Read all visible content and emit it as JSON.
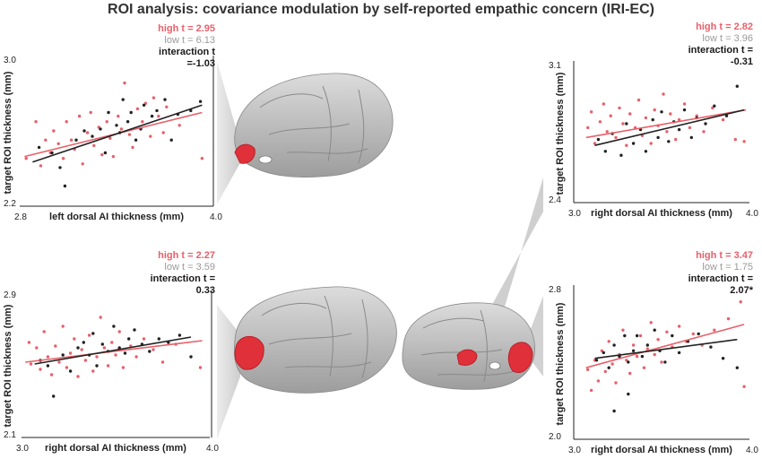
{
  "title": "ROI analysis: covariance modulation by self-reported empathic concern (IRI-EC)",
  "colors": {
    "high": "#e8606a",
    "low": "#222222",
    "brain": "#bdbdbd",
    "roi": "#e0303a",
    "wedge": "#d6d6d6"
  },
  "chart_data": [
    {
      "type": "scatter",
      "panel": "top-left",
      "xlabel": "left dorsal AI thickness (mm)",
      "ylabel": "target ROI thickness (mm)",
      "xlim": [
        2.8,
        4.0
      ],
      "ylim": [
        2.2,
        3.0
      ],
      "x_ticks": [
        "2.8",
        "4.0"
      ],
      "y_ticks": [
        "3.0",
        "2.2"
      ],
      "stats": {
        "high": "high t = 2.95",
        "low": "low t = 6.13",
        "interaction": "interaction t =-1.03"
      },
      "fits": [
        {
          "group": "high",
          "x": [
            2.83,
            3.93
          ],
          "y": [
            2.47,
            2.71
          ]
        },
        {
          "group": "low",
          "x": [
            2.88,
            3.93
          ],
          "y": [
            2.44,
            2.75
          ]
        }
      ],
      "series": [
        {
          "name": "high",
          "points": [
            [
              2.84,
              2.46
            ],
            [
              2.9,
              2.66
            ],
            [
              2.93,
              2.42
            ],
            [
              2.96,
              2.56
            ],
            [
              2.99,
              2.49
            ],
            [
              3.01,
              2.61
            ],
            [
              3.04,
              2.54
            ],
            [
              3.07,
              2.46
            ],
            [
              3.09,
              2.66
            ],
            [
              3.12,
              2.56
            ],
            [
              3.14,
              2.51
            ],
            [
              3.17,
              2.69
            ],
            [
              3.19,
              2.43
            ],
            [
              3.22,
              2.6
            ],
            [
              3.24,
              2.71
            ],
            [
              3.26,
              2.53
            ],
            [
              3.29,
              2.63
            ],
            [
              3.31,
              2.48
            ],
            [
              3.34,
              2.66
            ],
            [
              3.36,
              2.57
            ],
            [
              3.38,
              2.47
            ],
            [
              3.41,
              2.69
            ],
            [
              3.43,
              2.62
            ],
            [
              3.45,
              2.87
            ],
            [
              3.48,
              2.59
            ],
            [
              3.5,
              2.52
            ],
            [
              3.53,
              2.73
            ],
            [
              3.56,
              2.66
            ],
            [
              3.58,
              2.76
            ],
            [
              3.61,
              2.58
            ],
            [
              3.63,
              2.79
            ],
            [
              3.66,
              2.69
            ],
            [
              3.69,
              2.6
            ],
            [
              3.71,
              2.74
            ],
            [
              3.79,
              2.64
            ],
            [
              3.93,
              2.46
            ]
          ]
        },
        {
          "name": "low",
          "points": [
            [
              2.92,
              2.52
            ],
            [
              3.0,
              2.49
            ],
            [
              3.05,
              2.41
            ],
            [
              3.08,
              2.31
            ],
            [
              3.15,
              2.56
            ],
            [
              3.2,
              2.61
            ],
            [
              3.25,
              2.58
            ],
            [
              3.3,
              2.62
            ],
            [
              3.33,
              2.49
            ],
            [
              3.35,
              2.71
            ],
            [
              3.4,
              2.64
            ],
            [
              3.42,
              2.6
            ],
            [
              3.44,
              2.78
            ],
            [
              3.47,
              2.66
            ],
            [
              3.49,
              2.71
            ],
            [
              3.52,
              2.56
            ],
            [
              3.55,
              2.62
            ],
            [
              3.57,
              2.75
            ],
            [
              3.62,
              2.69
            ],
            [
              3.65,
              2.72
            ],
            [
              3.7,
              2.78
            ],
            [
              3.74,
              2.56
            ],
            [
              3.78,
              2.7
            ],
            [
              3.86,
              2.72
            ],
            [
              3.92,
              2.77
            ]
          ]
        }
      ]
    },
    {
      "type": "scatter",
      "panel": "bottom-left",
      "xlabel": "right dorsal AI thickness (mm)",
      "ylabel": "target ROI thickness (mm)",
      "xlim": [
        3.0,
        4.0
      ],
      "ylim": [
        2.1,
        2.9
      ],
      "x_ticks": [
        "3.0",
        "4.0"
      ],
      "y_ticks": [
        "2.9",
        "2.1"
      ],
      "stats": {
        "high": "high t = 2.27",
        "low": "low t = 3.59",
        "interaction": "interaction t = 0.33"
      },
      "fits": [
        {
          "group": "high",
          "x": [
            3.02,
            3.96
          ],
          "y": [
            2.52,
            2.64
          ]
        },
        {
          "group": "low",
          "x": [
            3.07,
            3.9
          ],
          "y": [
            2.51,
            2.66
          ]
        }
      ],
      "series": [
        {
          "name": "high",
          "points": [
            [
              3.04,
              2.63
            ],
            [
              3.05,
              2.51
            ],
            [
              3.08,
              2.6
            ],
            [
              3.1,
              2.48
            ],
            [
              3.12,
              2.69
            ],
            [
              3.14,
              2.55
            ],
            [
              3.16,
              2.45
            ],
            [
              3.18,
              2.61
            ],
            [
              3.2,
              2.52
            ],
            [
              3.22,
              2.72
            ],
            [
              3.24,
              2.49
            ],
            [
              3.26,
              2.57
            ],
            [
              3.28,
              2.65
            ],
            [
              3.3,
              2.44
            ],
            [
              3.32,
              2.59
            ],
            [
              3.34,
              2.53
            ],
            [
              3.36,
              2.67
            ],
            [
              3.38,
              2.47
            ],
            [
              3.4,
              2.55
            ],
            [
              3.42,
              2.77
            ],
            [
              3.44,
              2.6
            ],
            [
              3.46,
              2.5
            ],
            [
              3.48,
              2.63
            ],
            [
              3.5,
              2.56
            ],
            [
              3.52,
              2.69
            ],
            [
              3.54,
              2.49
            ],
            [
              3.58,
              2.61
            ],
            [
              3.61,
              2.55
            ],
            [
              3.65,
              2.65
            ],
            [
              3.7,
              2.59
            ],
            [
              3.75,
              2.52
            ],
            [
              3.82,
              2.62
            ],
            [
              3.95,
              2.49
            ]
          ]
        },
        {
          "name": "low",
          "points": [
            [
              3.1,
              2.53
            ],
            [
              3.14,
              2.5
            ],
            [
              3.17,
              2.33
            ],
            [
              3.22,
              2.56
            ],
            [
              3.26,
              2.47
            ],
            [
              3.3,
              2.6
            ],
            [
              3.33,
              2.63
            ],
            [
              3.36,
              2.56
            ],
            [
              3.38,
              2.68
            ],
            [
              3.4,
              2.5
            ],
            [
              3.43,
              2.62
            ],
            [
              3.46,
              2.58
            ],
            [
              3.49,
              2.72
            ],
            [
              3.52,
              2.6
            ],
            [
              3.55,
              2.57
            ],
            [
              3.57,
              2.65
            ],
            [
              3.6,
              2.7
            ],
            [
              3.64,
              2.62
            ],
            [
              3.68,
              2.58
            ],
            [
              3.73,
              2.65
            ],
            [
              3.78,
              2.63
            ],
            [
              3.84,
              2.67
            ],
            [
              3.9,
              2.55
            ]
          ]
        }
      ]
    },
    {
      "type": "scatter",
      "panel": "top-right",
      "xlabel": "right dorsal AI thickness (mm)",
      "ylabel": "target ROI thickness (mm)",
      "xlim": [
        3.0,
        4.0
      ],
      "ylim": [
        2.4,
        3.1
      ],
      "x_ticks": [
        "3.0",
        "4.0"
      ],
      "y_ticks": [
        "3.1",
        "2.4"
      ],
      "stats": {
        "high": "high t = 2.82",
        "low": "low t = 3.96",
        "interaction": "interaction t = -0.31"
      },
      "fits": [
        {
          "group": "high",
          "x": [
            3.07,
            3.98
          ],
          "y": [
            2.73,
            2.87
          ]
        },
        {
          "group": "low",
          "x": [
            3.12,
            3.97
          ],
          "y": [
            2.69,
            2.87
          ]
        }
      ],
      "series": [
        {
          "name": "high",
          "points": [
            [
              3.08,
              2.78
            ],
            [
              3.1,
              2.86
            ],
            [
              3.12,
              2.7
            ],
            [
              3.15,
              2.81
            ],
            [
              3.17,
              2.9
            ],
            [
              3.19,
              2.76
            ],
            [
              3.21,
              2.84
            ],
            [
              3.24,
              2.73
            ],
            [
              3.26,
              2.88
            ],
            [
              3.28,
              2.8
            ],
            [
              3.3,
              2.69
            ],
            [
              3.32,
              2.85
            ],
            [
              3.35,
              2.78
            ],
            [
              3.37,
              2.92
            ],
            [
              3.39,
              2.74
            ],
            [
              3.41,
              2.83
            ],
            [
              3.44,
              2.7
            ],
            [
              3.46,
              2.87
            ],
            [
              3.48,
              2.79
            ],
            [
              3.51,
              2.95
            ],
            [
              3.53,
              2.76
            ],
            [
              3.55,
              2.85
            ],
            [
              3.58,
              2.72
            ],
            [
              3.6,
              2.82
            ],
            [
              3.63,
              2.9
            ],
            [
              3.66,
              2.78
            ],
            [
              3.7,
              2.84
            ],
            [
              3.74,
              2.76
            ],
            [
              3.79,
              2.88
            ],
            [
              3.85,
              2.82
            ],
            [
              3.92,
              2.72
            ],
            [
              3.97,
              2.71
            ]
          ]
        },
        {
          "name": "low",
          "points": [
            [
              3.14,
              2.72
            ],
            [
              3.18,
              2.66
            ],
            [
              3.22,
              2.75
            ],
            [
              3.27,
              2.64
            ],
            [
              3.3,
              2.8
            ],
            [
              3.34,
              2.7
            ],
            [
              3.38,
              2.77
            ],
            [
              3.41,
              2.66
            ],
            [
              3.45,
              2.82
            ],
            [
              3.48,
              2.73
            ],
            [
              3.5,
              2.86
            ],
            [
              3.54,
              2.71
            ],
            [
              3.57,
              2.81
            ],
            [
              3.6,
              2.77
            ],
            [
              3.63,
              2.87
            ],
            [
              3.67,
              2.73
            ],
            [
              3.7,
              2.83
            ],
            [
              3.75,
              2.8
            ],
            [
              3.8,
              2.89
            ],
            [
              3.87,
              2.84
            ],
            [
              3.93,
              2.99
            ]
          ]
        }
      ]
    },
    {
      "type": "scatter",
      "panel": "bottom-right",
      "xlabel": "right dorsal AI thickness (mm)",
      "ylabel": "target ROI thickness (mm)",
      "xlim": [
        3.0,
        4.0
      ],
      "ylim": [
        2.0,
        2.8
      ],
      "x_ticks": [
        "3.0",
        "4.0"
      ],
      "y_ticks": [
        "2.8",
        "2.0"
      ],
      "stats": {
        "high": "high t = 3.47",
        "low": "low t = 1.75",
        "interaction": "interaction t = 2.07*"
      },
      "fits": [
        {
          "group": "high",
          "x": [
            3.07,
            3.97
          ],
          "y": [
            2.38,
            2.61
          ]
        },
        {
          "group": "low",
          "x": [
            3.12,
            3.93
          ],
          "y": [
            2.43,
            2.53
          ]
        }
      ],
      "series": [
        {
          "name": "high",
          "points": [
            [
              3.08,
              2.37
            ],
            [
              3.1,
              2.26
            ],
            [
              3.12,
              2.42
            ],
            [
              3.14,
              2.31
            ],
            [
              3.16,
              2.47
            ],
            [
              3.18,
              2.36
            ],
            [
              3.2,
              2.52
            ],
            [
              3.22,
              2.4
            ],
            [
              3.24,
              2.3
            ],
            [
              3.26,
              2.45
            ],
            [
              3.28,
              2.58
            ],
            [
              3.3,
              2.42
            ],
            [
              3.32,
              2.35
            ],
            [
              3.34,
              2.5
            ],
            [
              3.36,
              2.44
            ],
            [
              3.38,
              2.55
            ],
            [
              3.4,
              2.38
            ],
            [
              3.42,
              2.48
            ],
            [
              3.44,
              2.62
            ],
            [
              3.46,
              2.45
            ],
            [
              3.48,
              2.53
            ],
            [
              3.5,
              2.41
            ],
            [
              3.53,
              2.57
            ],
            [
              3.56,
              2.49
            ],
            [
              3.6,
              2.6
            ],
            [
              3.64,
              2.52
            ],
            [
              3.68,
              2.56
            ],
            [
              3.73,
              2.5
            ],
            [
              3.8,
              2.58
            ],
            [
              3.88,
              2.64
            ],
            [
              3.95,
              2.73
            ],
            [
              3.97,
              2.28
            ]
          ]
        },
        {
          "name": "low",
          "points": [
            [
              3.13,
              2.42
            ],
            [
              3.17,
              2.46
            ],
            [
              3.2,
              2.38
            ],
            [
              3.23,
              2.5
            ],
            [
              3.26,
              2.44
            ],
            [
              3.29,
              2.55
            ],
            [
              3.31,
              2.41
            ],
            [
              3.34,
              2.47
            ],
            [
              3.36,
              2.55
            ],
            [
              3.39,
              2.44
            ],
            [
              3.42,
              2.5
            ],
            [
              3.46,
              2.58
            ],
            [
              3.49,
              2.47
            ],
            [
              3.52,
              2.41
            ],
            [
              3.56,
              2.55
            ],
            [
              3.6,
              2.46
            ],
            [
              3.65,
              2.52
            ],
            [
              3.71,
              2.56
            ],
            [
              3.78,
              2.49
            ],
            [
              3.85,
              2.43
            ],
            [
              3.93,
              2.38
            ],
            [
              3.23,
              2.15
            ],
            [
              3.31,
              2.24
            ]
          ]
        }
      ]
    }
  ]
}
